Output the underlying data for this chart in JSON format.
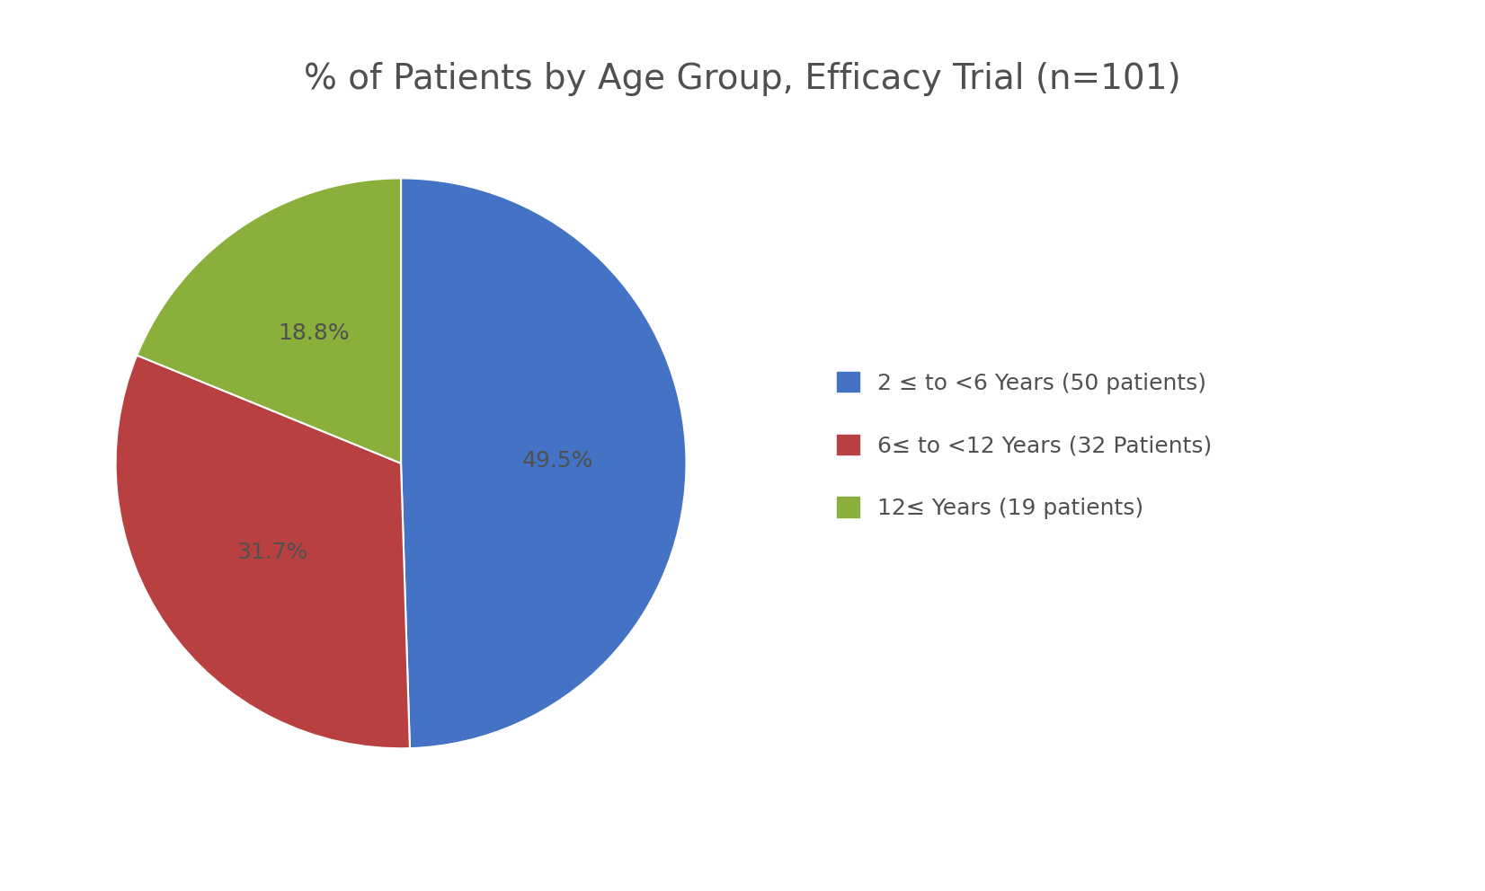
{
  "title": "% of Patients by Age Group, Efficacy Trial (n=101)",
  "title_fontsize": 28,
  "slices": [
    50,
    32,
    19
  ],
  "percentages": [
    "49.5%",
    "31.7%",
    "18.8%"
  ],
  "colors": [
    "#4472C4",
    "#B94040",
    "#8AAF3B"
  ],
  "legend_labels": [
    "2 ≤ to <6 Years (50 patients)",
    "6≤ to <12 Years (32 Patients)",
    "12≤ Years (19 patients)"
  ],
  "legend_colors": [
    "#4472C4",
    "#B94040",
    "#8AAF3B"
  ],
  "startangle": 90,
  "background_color": "#FFFFFF",
  "label_fontsize": 18,
  "label_color": "#505050",
  "legend_fontsize": 18,
  "legend_text_color": "#505050",
  "title_color": "#505050"
}
